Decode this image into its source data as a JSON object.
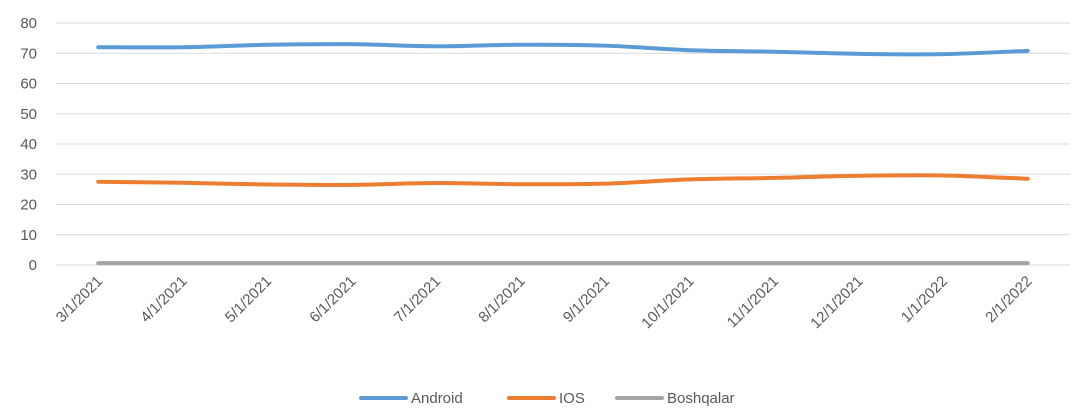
{
  "chart_data": {
    "type": "line",
    "title": "",
    "xlabel": "",
    "ylabel": "",
    "ylim": [
      0,
      80
    ],
    "yticks": [
      0,
      10,
      20,
      30,
      40,
      50,
      60,
      70,
      80
    ],
    "grid": true,
    "legend_position": "bottom",
    "x": [
      "3/1/2021",
      "4/1/2021",
      "5/1/2021",
      "6/1/2021",
      "7/1/2021",
      "8/1/2021",
      "9/1/2021",
      "10/1/2021",
      "11/1/2021",
      "12/1/2021",
      "1/1/2022",
      "2/1/2022"
    ],
    "series": [
      {
        "name": "Android",
        "color": "#5b9bd5",
        "values": [
          72,
          72,
          72.8,
          73,
          72.3,
          72.8,
          72.5,
          71,
          70.5,
          69.8,
          69.7,
          70.8
        ]
      },
      {
        "name": "IOS",
        "color": "#ed7d31",
        "values": [
          27.5,
          27.2,
          26.6,
          26.5,
          27.1,
          26.7,
          26.9,
          28.3,
          28.8,
          29.5,
          29.6,
          28.5
        ]
      },
      {
        "name": "Boshqalar",
        "color": "#a5a5a5",
        "values": [
          0.6,
          0.6,
          0.6,
          0.6,
          0.6,
          0.6,
          0.6,
          0.6,
          0.6,
          0.6,
          0.6,
          0.6
        ]
      }
    ]
  }
}
